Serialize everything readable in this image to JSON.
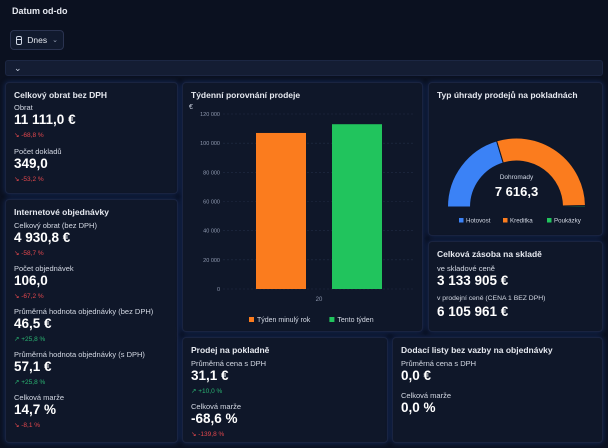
{
  "filter": {
    "label": "Datum od-do",
    "date_value": "Dnes"
  },
  "colors": {
    "orange": "#fb7c1e",
    "green": "#21c45d",
    "blue": "#3b82f6",
    "negative": "#e5484d",
    "positive": "#2bb673"
  },
  "turnover": {
    "title": "Celkový obrat bez DPH",
    "revenue_label": "Obrat",
    "revenue_value": "11 111,0 €",
    "revenue_change": "↘ -68,8 %",
    "docs_label": "Počet dokladů",
    "docs_value": "349,0",
    "docs_change": "↘ -53,2 %"
  },
  "online": {
    "title": "Internetové objednávky",
    "m1_label": "Celkový obrat (bez DPH)",
    "m1_value": "4 930,8 €",
    "m1_change": "↘ -58,7 %",
    "m2_label": "Počet objednávek",
    "m2_value": "106,0",
    "m2_change": "↘ -67,2 %",
    "m3_label": "Průměrná hodnota objednávky (bez DPH)",
    "m3_value": "46,5 €",
    "m3_change": "↗ +25,8 %",
    "m4_label": "Průměrná hodnota objednávky (s DPH)",
    "m4_value": "57,1 €",
    "m4_change": "↗ +25,8 %",
    "m5_label": "Celková marže",
    "m5_value": "14,7 %",
    "m5_change": "↘ -8,1 %"
  },
  "weekly": {
    "title": "Týdenní porovnání prodeje",
    "chart_data": {
      "type": "bar",
      "title": "Týdenní porovnání prodeje",
      "ylabel": "€",
      "categories": [
        "20"
      ],
      "series": [
        {
          "name": "Týden minulý rok",
          "values": [
            107000
          ],
          "color": "#fb7c1e"
        },
        {
          "name": "Tento týden",
          "values": [
            113000
          ],
          "color": "#21c45d"
        }
      ],
      "ylim": [
        0,
        120000
      ],
      "yticks": [
        0,
        20000,
        40000,
        60000,
        80000,
        100000,
        120000
      ],
      "ytick_labels": [
        "0",
        "20 000",
        "40 000",
        "60 000",
        "80 000",
        "100 000",
        "120 000"
      ],
      "legend": "bottom"
    }
  },
  "payment": {
    "title": "Typ úhrady prodejů na pokladnách",
    "total_label": "Dohromady",
    "total_value": "7 616,3",
    "chart_data": {
      "type": "pie",
      "shape": "half-donut",
      "total": 7616.3,
      "slices": [
        {
          "name": "Hotovost",
          "value": 3100,
          "color": "#3b82f6"
        },
        {
          "name": "Kreditka",
          "value": 4466.3,
          "color": "#fb7c1e"
        },
        {
          "name": "Poukázky",
          "value": 50,
          "color": "#21c45d"
        }
      ],
      "legend": "bottom"
    }
  },
  "stock": {
    "title": "Celková zásoba na skladě",
    "m1_label": "ve skladové ceně",
    "m1_value": "3 133 905 €",
    "m2_label": "v prodejní ceně (CENA 1 BEZ DPH)",
    "m2_value": "6 105 961 €"
  },
  "store": {
    "title": "Prodej na pokladně",
    "m1_label": "Průměrná cena s DPH",
    "m1_value": "31,1 €",
    "m1_change": "↗ +10,0 %",
    "m2_label": "Celková marže",
    "m2_value": "-68,6 %",
    "m2_change": "↘ -139,8 %"
  },
  "delivery": {
    "title": "Dodací listy bez vazby na objednávky",
    "m1_label": "Průměrná cena s DPH",
    "m1_value": "0,0 €",
    "m2_label": "Celková marže",
    "m2_value": "0,0 %"
  }
}
